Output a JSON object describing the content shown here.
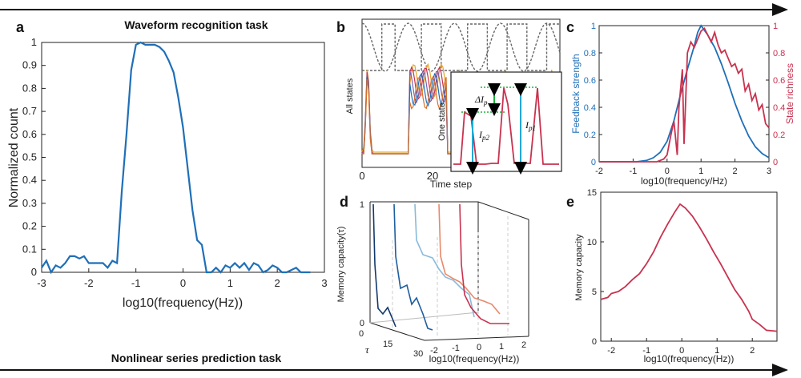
{
  "tasks": {
    "top": "Waveform recognition task",
    "bottom": "Nonlinear series prediction task"
  },
  "panel_labels": {
    "a": "a",
    "b": "b",
    "c": "c",
    "d": "d",
    "e": "e"
  },
  "colors": {
    "blue": "#1f6fb8",
    "red": "#c8324f",
    "cyan": "#21a9d6",
    "green": "#1db33b",
    "orange": "#e6a42a"
  },
  "inset_labels": {
    "delta": "ΔI",
    "delta_sub": "p",
    "ip1": "I",
    "ip1_sub": "p1",
    "ip2": "I",
    "ip2_sub": "p2"
  },
  "chart_data": [
    {
      "id": "a",
      "type": "line",
      "xlabel": "log10(frequency(Hz))",
      "ylabel": "Normalized count",
      "xlim": [
        -3,
        3
      ],
      "ylim": [
        0,
        1
      ],
      "xticks": [
        "-3",
        "-2",
        "-1",
        "0",
        "1",
        "2",
        "3"
      ],
      "yticks": [
        "0",
        "0.1",
        "0.2",
        "0.3",
        "0.4",
        "0.5",
        "0.6",
        "0.7",
        "0.8",
        "0.9",
        "1"
      ],
      "x": [
        -3.0,
        -2.9,
        -2.8,
        -2.7,
        -2.6,
        -2.5,
        -2.4,
        -2.3,
        -2.2,
        -2.1,
        -2.0,
        -1.9,
        -1.8,
        -1.7,
        -1.6,
        -1.5,
        -1.4,
        -1.3,
        -1.2,
        -1.1,
        -1.0,
        -0.9,
        -0.8,
        -0.7,
        -0.6,
        -0.5,
        -0.4,
        -0.3,
        -0.2,
        -0.1,
        0.0,
        0.1,
        0.2,
        0.3,
        0.4,
        0.5,
        0.6,
        0.7,
        0.8,
        0.9,
        1.0,
        1.1,
        1.2,
        1.3,
        1.4,
        1.5,
        1.6,
        1.7,
        1.8,
        1.9,
        2.0,
        2.1,
        2.2,
        2.3,
        2.4,
        2.5,
        2.6,
        2.7
      ],
      "y": [
        0.02,
        0.05,
        0.0,
        0.03,
        0.02,
        0.04,
        0.07,
        0.07,
        0.06,
        0.07,
        0.04,
        0.04,
        0.04,
        0.04,
        0.02,
        0.05,
        0.04,
        0.35,
        0.6,
        0.88,
        0.99,
        1.0,
        0.99,
        0.99,
        0.99,
        0.98,
        0.96,
        0.92,
        0.87,
        0.76,
        0.63,
        0.45,
        0.27,
        0.14,
        0.12,
        0.0,
        0.0,
        0.02,
        0.0,
        0.03,
        0.02,
        0.04,
        0.02,
        0.04,
        0.01,
        0.04,
        0.03,
        0.0,
        0.01,
        0.03,
        0.02,
        0.0,
        0.0,
        0.01,
        0.02,
        0.0,
        0.0,
        0.0
      ],
      "series": [
        {
          "color": "#1f6fb8"
        }
      ]
    },
    {
      "id": "b",
      "type": "line",
      "xlabel": "Time step",
      "ylabel": "All states",
      "xticks": [
        "0",
        "20"
      ],
      "xlim": [
        0,
        30
      ],
      "inset_ylabel": "One state"
    },
    {
      "id": "c",
      "type": "line",
      "xlabel": "log10(frequency/Hz)",
      "ylabel_left": "Feedback strength",
      "ylabel_right": "State richness",
      "xlim": [
        -2,
        3
      ],
      "ylim": [
        0,
        1
      ],
      "xticks": [
        "-2",
        "-1",
        "0",
        "1",
        "2",
        "3"
      ],
      "yticks_left": [
        "0",
        "0.2",
        "0.4",
        "0.6",
        "0.8",
        "1"
      ],
      "yticks_right": [
        "0",
        "0.2",
        "0.4",
        "0.6",
        "0.8",
        "1"
      ],
      "series": [
        {
          "name": "Feedback strength",
          "color": "#1f6fb8",
          "x": [
            -2.0,
            -0.9,
            -0.6,
            -0.4,
            -0.2,
            0.0,
            0.2,
            0.4,
            0.6,
            0.8,
            0.9,
            1.0,
            1.2,
            1.4,
            1.6,
            1.8,
            2.0,
            2.2,
            2.4,
            2.6,
            2.8,
            3.0
          ],
          "y": [
            0.0,
            0.0,
            0.01,
            0.03,
            0.07,
            0.15,
            0.3,
            0.5,
            0.68,
            0.85,
            0.95,
            1.0,
            0.93,
            0.84,
            0.72,
            0.58,
            0.43,
            0.3,
            0.19,
            0.11,
            0.06,
            0.03
          ]
        },
        {
          "name": "State richness",
          "color": "#c8324f",
          "x": [
            -2.0,
            -0.5,
            -0.3,
            -0.1,
            0.0,
            0.1,
            0.2,
            0.3,
            0.35,
            0.45,
            0.5,
            0.6,
            0.7,
            0.8,
            0.9,
            1.0,
            1.1,
            1.2,
            1.3,
            1.4,
            1.5,
            1.6,
            1.7,
            1.8,
            1.9,
            2.0,
            2.1,
            2.2,
            2.3,
            2.4,
            2.5,
            2.6,
            2.7,
            2.8,
            2.9,
            3.0
          ],
          "y": [
            0.0,
            0.0,
            0.0,
            0.02,
            0.05,
            0.18,
            0.3,
            0.05,
            0.4,
            0.68,
            0.13,
            0.8,
            0.88,
            0.84,
            0.9,
            0.96,
            0.98,
            0.93,
            0.88,
            0.95,
            0.86,
            0.8,
            0.82,
            0.76,
            0.7,
            0.72,
            0.65,
            0.68,
            0.52,
            0.57,
            0.45,
            0.5,
            0.38,
            0.42,
            0.28,
            0.25
          ]
        }
      ]
    },
    {
      "id": "d",
      "type": "line",
      "xlabel": "log10(frequency(Hz))",
      "ylabel": "Memory capacity(τ)",
      "depth_label": "τ",
      "xticks": [
        "-2",
        "-1",
        "0",
        "1",
        "2"
      ],
      "zticks": [
        "0",
        "1"
      ],
      "depth_ticks": [
        "0",
        "15",
        "30"
      ]
    },
    {
      "id": "e",
      "type": "line",
      "xlabel": "log10(frequency(Hz))",
      "ylabel": "Memory capacity",
      "xlim": [
        -2.3,
        2.7
      ],
      "ylim": [
        0,
        15
      ],
      "xticks": [
        "-2",
        "-1",
        "0",
        "1",
        "2"
      ],
      "yticks": [
        "0",
        "5",
        "10",
        "15"
      ],
      "x": [
        -2.3,
        -2.1,
        -2.0,
        -1.8,
        -1.6,
        -1.4,
        -1.2,
        -1.0,
        -0.8,
        -0.6,
        -0.4,
        -0.2,
        -0.05,
        0.1,
        0.3,
        0.5,
        0.7,
        0.9,
        1.1,
        1.3,
        1.5,
        1.7,
        1.9,
        2.0,
        2.2,
        2.4,
        2.7
      ],
      "y": [
        4.2,
        4.4,
        4.8,
        5.0,
        5.5,
        6.2,
        6.8,
        7.8,
        9.0,
        10.5,
        11.8,
        13.0,
        13.8,
        13.4,
        12.6,
        11.5,
        10.3,
        9.0,
        7.8,
        6.5,
        5.2,
        4.2,
        3.0,
        2.2,
        1.7,
        1.1,
        1.0
      ],
      "series": [
        {
          "color": "#c8324f"
        }
      ]
    }
  ]
}
